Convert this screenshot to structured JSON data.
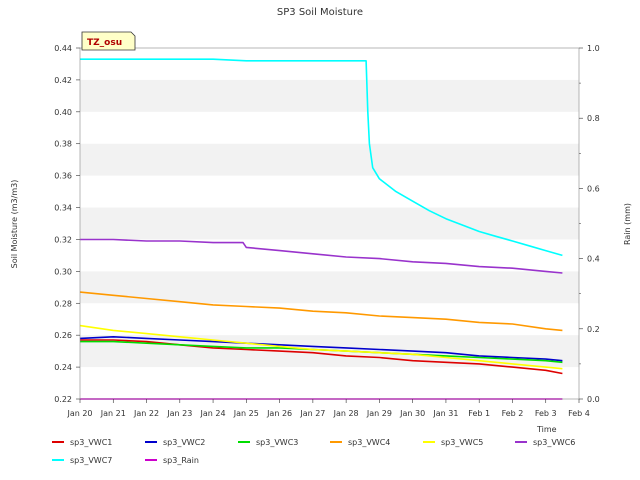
{
  "chart_data": {
    "type": "line",
    "title": "SP3 Soil Moisture",
    "xlabel": "Time",
    "ylabel": "Soil Moisture (m3/m3)",
    "y2label": "Rain (mm)",
    "badge": "TZ_osu",
    "x_ticks": [
      "Jan 20",
      "Jan 21",
      "Jan 22",
      "Jan 23",
      "Jan 24",
      "Jan 25",
      "Jan 26",
      "Jan 27",
      "Jan 28",
      "Jan 29",
      "Jan 30",
      "Jan 31",
      "Feb 1",
      "Feb 2",
      "Feb 3",
      "Feb 4"
    ],
    "xlim": [
      0,
      15
    ],
    "ylim": [
      0.22,
      0.44
    ],
    "y_ticks": [
      "0.22",
      "0.24",
      "0.26",
      "0.28",
      "0.30",
      "0.32",
      "0.34",
      "0.36",
      "0.38",
      "0.40",
      "0.42",
      "0.44"
    ],
    "y2lim": [
      0.0,
      1.0
    ],
    "y2_ticks": [
      "0.0",
      "0.2",
      "0.4",
      "0.6",
      "0.8",
      "1.0"
    ],
    "grid": "horizontal bands",
    "legend_position": "bottom",
    "series": [
      {
        "name": "sp3_VWC1",
        "color": "#dd0000",
        "axis": "left",
        "x": [
          0,
          1,
          2,
          3,
          4,
          5,
          6,
          7,
          8,
          9,
          10,
          11,
          12,
          13,
          14,
          14.5
        ],
        "y": [
          0.257,
          0.257,
          0.256,
          0.254,
          0.252,
          0.251,
          0.25,
          0.249,
          0.247,
          0.246,
          0.244,
          0.243,
          0.242,
          0.24,
          0.238,
          0.236
        ]
      },
      {
        "name": "sp3_VWC2",
        "color": "#0000cc",
        "axis": "left",
        "x": [
          0,
          1,
          2,
          3,
          4,
          5,
          6,
          7,
          8,
          9,
          10,
          11,
          12,
          13,
          14,
          14.5
        ],
        "y": [
          0.258,
          0.259,
          0.258,
          0.257,
          0.256,
          0.255,
          0.254,
          0.253,
          0.252,
          0.251,
          0.25,
          0.249,
          0.247,
          0.246,
          0.245,
          0.244
        ]
      },
      {
        "name": "sp3_VWC3",
        "color": "#00dd00",
        "axis": "left",
        "x": [
          0,
          1,
          2,
          3,
          4,
          5,
          6,
          7,
          8,
          9,
          10,
          11,
          12,
          13,
          14,
          14.5
        ],
        "y": [
          0.256,
          0.256,
          0.255,
          0.254,
          0.253,
          0.252,
          0.252,
          0.251,
          0.25,
          0.249,
          0.248,
          0.247,
          0.246,
          0.245,
          0.244,
          0.243
        ]
      },
      {
        "name": "sp3_VWC4",
        "color": "#ff9900",
        "axis": "left",
        "x": [
          0,
          1,
          2,
          3,
          4,
          5,
          6,
          7,
          8,
          9,
          10,
          11,
          12,
          13,
          14,
          14.5
        ],
        "y": [
          0.287,
          0.285,
          0.283,
          0.281,
          0.279,
          0.278,
          0.277,
          0.275,
          0.274,
          0.272,
          0.271,
          0.27,
          0.268,
          0.267,
          0.264,
          0.263
        ]
      },
      {
        "name": "sp3_VWC5",
        "color": "#ffff00",
        "axis": "left",
        "x": [
          0,
          1,
          2,
          3,
          4,
          5,
          6,
          7,
          8,
          9,
          10,
          11,
          12,
          13,
          14,
          14.5
        ],
        "y": [
          0.266,
          0.263,
          0.261,
          0.259,
          0.257,
          0.255,
          0.253,
          0.251,
          0.25,
          0.249,
          0.248,
          0.246,
          0.244,
          0.242,
          0.24,
          0.239
        ]
      },
      {
        "name": "sp3_VWC6",
        "color": "#9933cc",
        "axis": "left",
        "x": [
          0,
          1,
          2,
          3,
          4,
          4.9,
          5,
          6,
          7,
          8,
          9,
          10,
          11,
          12,
          13,
          14,
          14.5
        ],
        "y": [
          0.32,
          0.32,
          0.319,
          0.319,
          0.318,
          0.318,
          0.315,
          0.313,
          0.311,
          0.309,
          0.308,
          0.306,
          0.305,
          0.303,
          0.302,
          0.3,
          0.299
        ]
      },
      {
        "name": "sp3_VWC7",
        "color": "#00ffff",
        "axis": "left",
        "x": [
          0,
          1,
          2,
          3,
          4,
          5,
          6,
          7,
          8,
          8.6,
          8.65,
          8.7,
          8.8,
          9,
          9.5,
          10,
          10.5,
          11,
          11.5,
          12,
          12.5,
          13,
          13.5,
          14,
          14.5
        ],
        "y": [
          0.433,
          0.433,
          0.433,
          0.433,
          0.433,
          0.432,
          0.432,
          0.432,
          0.432,
          0.432,
          0.4,
          0.38,
          0.365,
          0.358,
          0.35,
          0.344,
          0.338,
          0.333,
          0.329,
          0.325,
          0.322,
          0.319,
          0.316,
          0.313,
          0.31
        ]
      },
      {
        "name": "sp3_Rain",
        "color": "#cc00cc",
        "axis": "right",
        "x": [
          0,
          14.5
        ],
        "y": [
          0.0,
          0.0
        ]
      }
    ]
  }
}
